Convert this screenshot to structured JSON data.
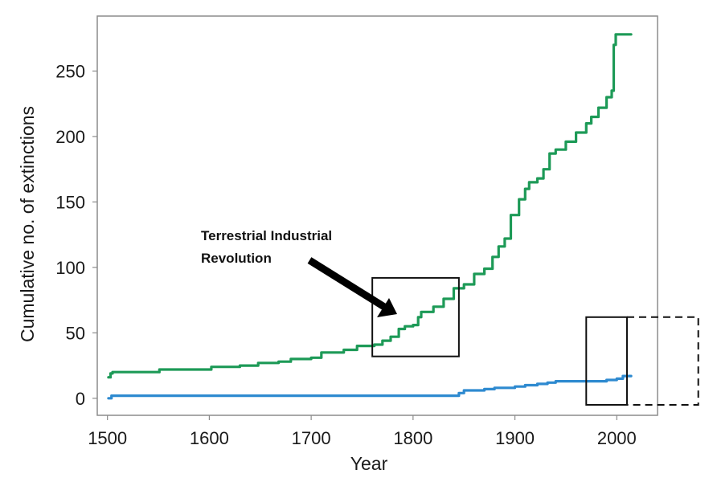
{
  "chart_data": {
    "type": "line",
    "xlabel": "Year",
    "ylabel": "Cumulative no. of extinctions",
    "xlim": [
      1490,
      2040
    ],
    "ylim": [
      -13,
      292
    ],
    "xticks": [
      "1500",
      "1600",
      "1700",
      "1800",
      "1900",
      "2000"
    ],
    "yticks": [
      "0",
      "50",
      "100",
      "150",
      "200",
      "250"
    ],
    "grid": false,
    "series": [
      {
        "color": "#1d9a57",
        "points": [
          [
            1501,
            16
          ],
          [
            1503,
            19
          ],
          [
            1505,
            20
          ],
          [
            1550,
            20
          ],
          [
            1551,
            22
          ],
          [
            1600,
            22
          ],
          [
            1602,
            24
          ],
          [
            1630,
            25
          ],
          [
            1648,
            27
          ],
          [
            1668,
            28
          ],
          [
            1680,
            30
          ],
          [
            1700,
            31
          ],
          [
            1710,
            35
          ],
          [
            1732,
            37
          ],
          [
            1745,
            40
          ],
          [
            1762,
            41
          ],
          [
            1770,
            44
          ],
          [
            1778,
            47
          ],
          [
            1786,
            53
          ],
          [
            1792,
            55
          ],
          [
            1800,
            56
          ],
          [
            1805,
            62
          ],
          [
            1808,
            66
          ],
          [
            1820,
            70
          ],
          [
            1830,
            76
          ],
          [
            1840,
            84
          ],
          [
            1850,
            87
          ],
          [
            1860,
            95
          ],
          [
            1870,
            99
          ],
          [
            1878,
            108
          ],
          [
            1884,
            116
          ],
          [
            1890,
            122
          ],
          [
            1896,
            140
          ],
          [
            1904,
            152
          ],
          [
            1910,
            160
          ],
          [
            1914,
            165
          ],
          [
            1922,
            168
          ],
          [
            1928,
            175
          ],
          [
            1934,
            187
          ],
          [
            1940,
            190
          ],
          [
            1950,
            196
          ],
          [
            1960,
            203
          ],
          [
            1970,
            210
          ],
          [
            1975,
            215
          ],
          [
            1982,
            222
          ],
          [
            1990,
            230
          ],
          [
            1995,
            235
          ],
          [
            1997,
            270
          ],
          [
            1999,
            278
          ],
          [
            2014,
            278
          ]
        ]
      },
      {
        "color": "#2e8ad0",
        "points": [
          [
            1501,
            0
          ],
          [
            1504,
            2
          ],
          [
            1840,
            2
          ],
          [
            1845,
            4
          ],
          [
            1850,
            6
          ],
          [
            1870,
            7
          ],
          [
            1880,
            8
          ],
          [
            1900,
            9
          ],
          [
            1910,
            10
          ],
          [
            1922,
            11
          ],
          [
            1932,
            12
          ],
          [
            1940,
            13
          ],
          [
            1978,
            13
          ],
          [
            1990,
            14
          ],
          [
            2000,
            15
          ],
          [
            2006,
            17
          ],
          [
            2014,
            17
          ]
        ]
      }
    ],
    "annotations": [
      {
        "text_lines": [
          "Terrestrial Industrial",
          "Revolution"
        ]
      }
    ],
    "highlight_boxes": [
      {
        "x_range": [
          1760,
          1845
        ],
        "y_range": [
          32,
          92
        ],
        "style": "solid"
      },
      {
        "x_range": [
          1970,
          2010
        ],
        "y_range": [
          -5,
          62
        ],
        "style": "solid"
      },
      {
        "x_range": [
          2010,
          2080
        ],
        "y_range": [
          -5,
          62
        ],
        "style": "dashed"
      }
    ]
  }
}
